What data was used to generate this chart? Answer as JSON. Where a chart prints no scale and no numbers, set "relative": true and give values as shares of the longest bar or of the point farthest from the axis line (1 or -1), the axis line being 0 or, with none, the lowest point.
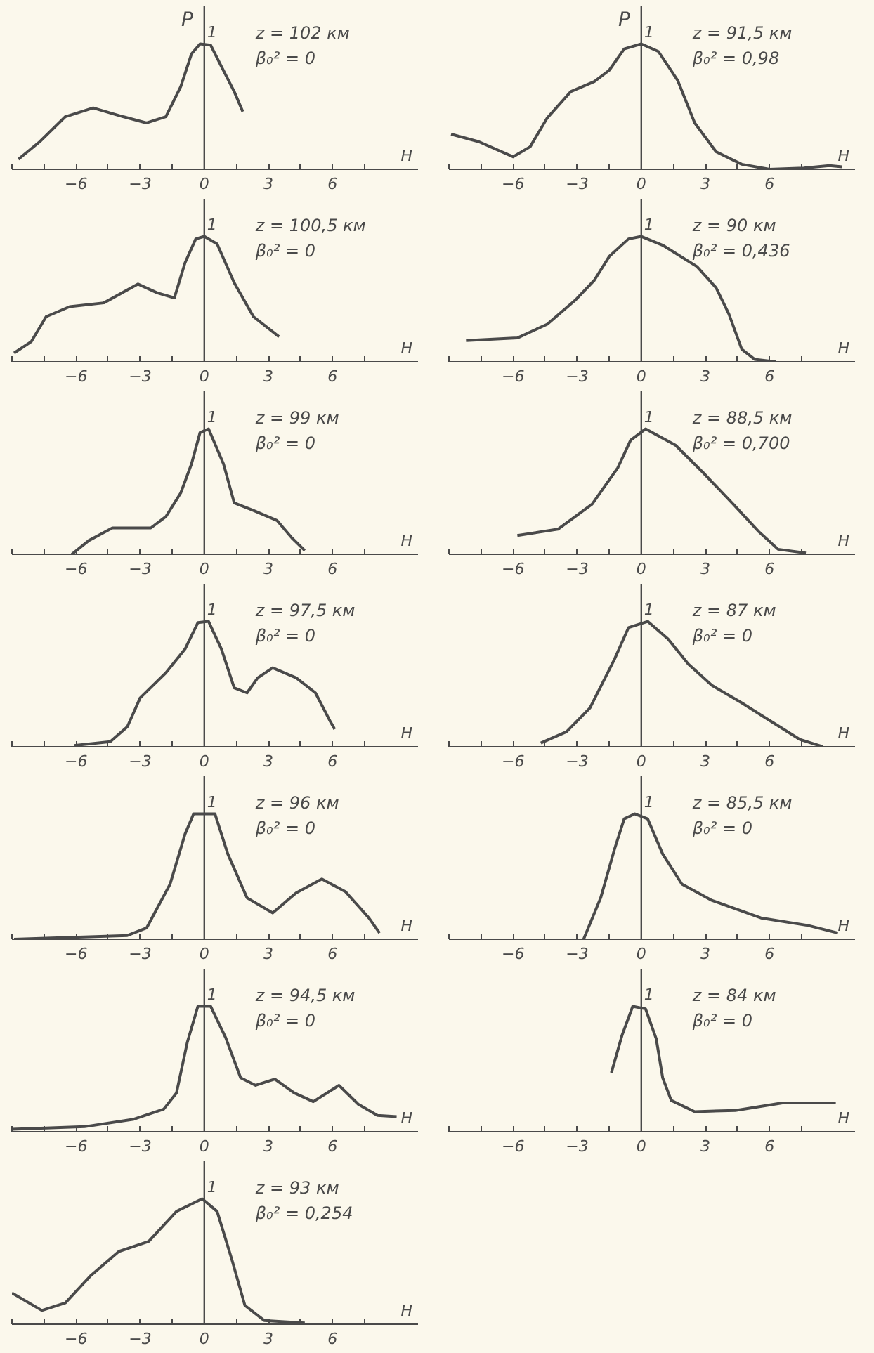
{
  "chart_data": [
    {
      "type": "line",
      "relative": true,
      "title": "z = 102 км",
      "subtitle": "β₀² = 0",
      "ylabel": "P",
      "xlabel": "H",
      "annotations": [
        "1"
      ],
      "ref_lines": [
        {
          "axis": "x",
          "value": 0
        }
      ],
      "xlim": [
        -9,
        10
      ],
      "xticks": [
        {
          "value": -9,
          "label": null
        },
        {
          "value": -7.5,
          "label": null
        },
        {
          "value": -6,
          "label": "−6"
        },
        {
          "value": -4.5,
          "label": null
        },
        {
          "value": -3,
          "label": "−3"
        },
        {
          "value": -1.5,
          "label": null
        },
        0,
        {
          "value": 1.5,
          "label": null
        },
        3,
        {
          "value": 4.5,
          "label": null
        },
        6,
        {
          "value": 7.5,
          "label": null
        }
      ],
      "grid": false,
      "series": [
        {
          "color": "#4a4a4a",
          "x": [
            -8.7,
            -7.7,
            -6.5,
            -5.2,
            -3.8,
            -2.7,
            -1.8,
            -1.1,
            -0.6,
            -0.2,
            0.3,
            0.8,
            1.4,
            1.8
          ],
          "values": [
            0.08,
            0.22,
            0.42,
            0.49,
            0.42,
            0.37,
            0.42,
            0.66,
            0.92,
            1.0,
            0.99,
            0.82,
            0.62,
            0.46
          ]
        }
      ]
    },
    {
      "type": "line",
      "relative": true,
      "title": "z = 100,5 км",
      "subtitle": "β₀² = 0",
      "xlabel": "H",
      "annotations": [
        "1"
      ],
      "ref_lines": [
        {
          "axis": "x",
          "value": 0
        }
      ],
      "xlim": [
        -9,
        10
      ],
      "xticks": [
        {
          "value": -9,
          "label": null
        },
        {
          "value": -7.5,
          "label": null
        },
        {
          "value": -6,
          "label": "−6"
        },
        {
          "value": -4.5,
          "label": null
        },
        {
          "value": -3,
          "label": "−3"
        },
        {
          "value": -1.5,
          "label": null
        },
        0,
        {
          "value": 1.5,
          "label": null
        },
        3,
        {
          "value": 4.5,
          "label": null
        },
        6,
        {
          "value": 7.5,
          "label": null
        }
      ],
      "grid": false,
      "series": [
        {
          "color": "#4a4a4a",
          "x": [
            -8.9,
            -8.1,
            -7.4,
            -6.3,
            -4.7,
            -3.1,
            -2.2,
            -1.4,
            -0.9,
            -0.4,
            0,
            0.6,
            1.4,
            2.3,
            3.5
          ],
          "values": [
            0.07,
            0.16,
            0.36,
            0.44,
            0.47,
            0.62,
            0.55,
            0.51,
            0.79,
            0.98,
            1.0,
            0.94,
            0.63,
            0.36,
            0.2
          ]
        }
      ]
    },
    {
      "type": "line",
      "relative": true,
      "title": "z = 99 км",
      "subtitle": "β₀² = 0",
      "xlabel": "H",
      "annotations": [
        "1"
      ],
      "ref_lines": [
        {
          "axis": "x",
          "value": 0
        }
      ],
      "xlim": [
        -9,
        10
      ],
      "xticks": [
        {
          "value": -9,
          "label": null
        },
        {
          "value": -7.5,
          "label": null
        },
        {
          "value": -6,
          "label": "−6"
        },
        {
          "value": -4.5,
          "label": null
        },
        {
          "value": -3,
          "label": "−3"
        },
        {
          "value": -1.5,
          "label": null
        },
        0,
        {
          "value": 1.5,
          "label": null
        },
        3,
        {
          "value": 4.5,
          "label": null
        },
        6,
        {
          "value": 7.5,
          "label": null
        }
      ],
      "grid": false,
      "series": [
        {
          "color": "#4a4a4a",
          "x": [
            -6.2,
            -5.4,
            -4.3,
            -2.5,
            -1.8,
            -1.1,
            -0.6,
            -0.2,
            0.2,
            0.9,
            1.4,
            2.3,
            3.4,
            4.1,
            4.7
          ],
          "values": [
            0,
            0.11,
            0.21,
            0.21,
            0.3,
            0.49,
            0.72,
            0.97,
            1.0,
            0.72,
            0.41,
            0.35,
            0.27,
            0.13,
            0.03
          ]
        }
      ]
    },
    {
      "type": "line",
      "relative": true,
      "title": "z = 97,5 км",
      "subtitle": "β₀² = 0",
      "xlabel": "H",
      "annotations": [
        "1"
      ],
      "ref_lines": [
        {
          "axis": "x",
          "value": 0
        }
      ],
      "xlim": [
        -9,
        10
      ],
      "xticks": [
        {
          "value": -9,
          "label": null
        },
        {
          "value": -7.5,
          "label": null
        },
        {
          "value": -6,
          "label": "−6"
        },
        {
          "value": -4.5,
          "label": null
        },
        {
          "value": -3,
          "label": "−3"
        },
        {
          "value": -1.5,
          "label": null
        },
        0,
        {
          "value": 1.5,
          "label": null
        },
        3,
        {
          "value": 4.5,
          "label": null
        },
        6,
        {
          "value": 7.5,
          "label": null
        }
      ],
      "grid": false,
      "series": [
        {
          "color": "#4a4a4a",
          "x": [
            -6.1,
            -4.4,
            -3.6,
            -3.0,
            -1.8,
            -0.9,
            -0.3,
            0.2,
            0.8,
            1.4,
            2.0,
            2.5,
            3.2,
            4.3,
            5.2,
            5.9,
            6.1
          ],
          "values": [
            0.01,
            0.04,
            0.16,
            0.39,
            0.59,
            0.78,
            0.99,
            1.0,
            0.78,
            0.47,
            0.43,
            0.55,
            0.63,
            0.55,
            0.43,
            0.2,
            0.14
          ]
        }
      ]
    },
    {
      "type": "line",
      "relative": true,
      "title": "z = 96 км",
      "subtitle": "β₀² = 0",
      "xlabel": "H",
      "annotations": [
        "1"
      ],
      "ref_lines": [
        {
          "axis": "x",
          "value": 0
        }
      ],
      "xlim": [
        -9,
        10
      ],
      "xticks": [
        {
          "value": -9,
          "label": null
        },
        {
          "value": -7.5,
          "label": null
        },
        {
          "value": -6,
          "label": "−6"
        },
        {
          "value": -4.5,
          "label": null
        },
        {
          "value": -3,
          "label": "−3"
        },
        {
          "value": -1.5,
          "label": null
        },
        0,
        {
          "value": 1.5,
          "label": null
        },
        3,
        {
          "value": 4.5,
          "label": null
        },
        6,
        {
          "value": 7.5,
          "label": null
        }
      ],
      "grid": false,
      "series": [
        {
          "color": "#4a4a4a",
          "x": [
            -8.9,
            -3.6,
            -2.7,
            -1.6,
            -0.9,
            -0.5,
            0.5,
            1.1,
            2.0,
            3.2,
            4.3,
            5.5,
            6.6,
            7.7,
            8.2
          ],
          "values": [
            0,
            0.03,
            0.09,
            0.44,
            0.84,
            1.0,
            1.0,
            0.68,
            0.33,
            0.21,
            0.37,
            0.48,
            0.38,
            0.17,
            0.05
          ]
        }
      ]
    },
    {
      "type": "line",
      "relative": true,
      "title": "z = 94,5 км",
      "subtitle": "β₀² = 0",
      "xlabel": "H",
      "annotations": [
        "1"
      ],
      "ref_lines": [
        {
          "axis": "x",
          "value": 0
        }
      ],
      "xlim": [
        -9,
        10
      ],
      "xticks": [
        {
          "value": -9,
          "label": null
        },
        {
          "value": -7.5,
          "label": null
        },
        {
          "value": -6,
          "label": "−6"
        },
        {
          "value": -4.5,
          "label": null
        },
        {
          "value": -3,
          "label": "−3"
        },
        {
          "value": -1.5,
          "label": null
        },
        0,
        {
          "value": 1.5,
          "label": null
        },
        3,
        {
          "value": 4.5,
          "label": null
        },
        6,
        {
          "value": 7.5,
          "label": null
        }
      ],
      "grid": false,
      "series": [
        {
          "color": "#4a4a4a",
          "x": [
            -9.0,
            -5.6,
            -3.3,
            -1.9,
            -1.3,
            -0.8,
            -0.3,
            0.3,
            1.0,
            1.7,
            2.4,
            3.3,
            4.2,
            5.1,
            6.3,
            7.2,
            8.1,
            9.0
          ],
          "values": [
            0.02,
            0.04,
            0.1,
            0.18,
            0.31,
            0.71,
            1.0,
            1.0,
            0.75,
            0.43,
            0.37,
            0.42,
            0.31,
            0.24,
            0.37,
            0.22,
            0.13,
            0.12
          ]
        }
      ]
    },
    {
      "type": "line",
      "relative": true,
      "title": "z = 93 км",
      "subtitle": "β₀² = 0,254",
      "xlabel": "H",
      "annotations": [
        "1"
      ],
      "ref_lines": [
        {
          "axis": "x",
          "value": 0
        }
      ],
      "xlim": [
        -9,
        10
      ],
      "xticks": [
        {
          "value": -9,
          "label": null
        },
        {
          "value": -7.5,
          "label": null
        },
        {
          "value": -6,
          "label": "−6"
        },
        {
          "value": -4.5,
          "label": null
        },
        {
          "value": -3,
          "label": "−3"
        },
        {
          "value": -1.5,
          "label": null
        },
        0,
        {
          "value": 1.5,
          "label": null
        },
        3,
        {
          "value": 4.5,
          "label": null
        },
        6,
        {
          "value": 7.5,
          "label": null
        }
      ],
      "grid": false,
      "series": [
        {
          "color": "#4a4a4a",
          "x": [
            -9.0,
            -7.6,
            -6.5,
            -5.3,
            -4.0,
            -2.6,
            -1.3,
            -0.1,
            0.6,
            1.3,
            1.9,
            2.8,
            4.7
          ],
          "values": [
            0.25,
            0.11,
            0.17,
            0.39,
            0.58,
            0.66,
            0.9,
            1.0,
            0.9,
            0.51,
            0.15,
            0.03,
            0.01
          ]
        }
      ]
    },
    {
      "type": "line",
      "relative": true,
      "title": "z = 91,5 км",
      "subtitle": "β₀² = 0,98",
      "ylabel": "P",
      "xlabel": "H",
      "annotations": [
        "1"
      ],
      "ref_lines": [
        {
          "axis": "x",
          "value": 0
        }
      ],
      "xlim": [
        -9,
        10
      ],
      "xticks": [
        {
          "value": -9,
          "label": null
        },
        {
          "value": -7.5,
          "label": null
        },
        {
          "value": -6,
          "label": "−6"
        },
        {
          "value": -4.5,
          "label": null
        },
        {
          "value": -3,
          "label": "−3"
        },
        {
          "value": -1.5,
          "label": null
        },
        0,
        {
          "value": 1.5,
          "label": null
        },
        3,
        {
          "value": 4.5,
          "label": null
        },
        6,
        {
          "value": 7.5,
          "label": null
        }
      ],
      "grid": false,
      "series": [
        {
          "color": "#4a4a4a",
          "x": [
            -8.9,
            -7.6,
            -6.0,
            -5.2,
            -4.4,
            -3.3,
            -2.2,
            -1.5,
            -0.8,
            0,
            0.8,
            1.7,
            2.5,
            3.5,
            4.7,
            6.0,
            7.6,
            8.8,
            9.4
          ],
          "values": [
            0.28,
            0.22,
            0.1,
            0.18,
            0.41,
            0.62,
            0.7,
            0.79,
            0.96,
            1.0,
            0.94,
            0.71,
            0.37,
            0.14,
            0.04,
            0,
            0.01,
            0.03,
            0.02
          ]
        }
      ]
    },
    {
      "type": "line",
      "relative": true,
      "title": "z = 90 км",
      "subtitle": "β₀² = 0,436",
      "xlabel": "H",
      "annotations": [
        "1"
      ],
      "ref_lines": [
        {
          "axis": "x",
          "value": 0
        }
      ],
      "xlim": [
        -9,
        10
      ],
      "xticks": [
        {
          "value": -9,
          "label": null
        },
        {
          "value": -7.5,
          "label": null
        },
        {
          "value": -6,
          "label": "−6"
        },
        {
          "value": -4.5,
          "label": null
        },
        {
          "value": -3,
          "label": "−3"
        },
        {
          "value": -1.5,
          "label": null
        },
        0,
        {
          "value": 1.5,
          "label": null
        },
        3,
        {
          "value": 4.5,
          "label": null
        },
        6,
        {
          "value": 7.5,
          "label": null
        }
      ],
      "grid": false,
      "series": [
        {
          "color": "#4a4a4a",
          "x": [
            -8.2,
            -5.8,
            -4.4,
            -3.1,
            -2.2,
            -1.5,
            -0.6,
            0,
            1.0,
            2.6,
            3.5,
            4.1,
            4.7,
            5.3,
            6.3
          ],
          "values": [
            0.17,
            0.19,
            0.3,
            0.49,
            0.65,
            0.84,
            0.98,
            1.0,
            0.93,
            0.76,
            0.59,
            0.38,
            0.1,
            0.02,
            0
          ]
        }
      ]
    },
    {
      "type": "line",
      "relative": true,
      "title": "z = 88,5 км",
      "subtitle": "β₀² = 0,700",
      "xlabel": "H",
      "annotations": [
        "1"
      ],
      "ref_lines": [
        {
          "axis": "x",
          "value": 0
        }
      ],
      "xlim": [
        -9,
        10
      ],
      "xticks": [
        {
          "value": -9,
          "label": null
        },
        {
          "value": -7.5,
          "label": null
        },
        {
          "value": -6,
          "label": "−6"
        },
        {
          "value": -4.5,
          "label": null
        },
        {
          "value": -3,
          "label": "−3"
        },
        {
          "value": -1.5,
          "label": null
        },
        0,
        {
          "value": 1.5,
          "label": null
        },
        3,
        {
          "value": 4.5,
          "label": null
        },
        6,
        {
          "value": 7.5,
          "label": null
        }
      ],
      "grid": false,
      "series": [
        {
          "color": "#4a4a4a",
          "x": [
            -5.8,
            -3.9,
            -2.3,
            -1.1,
            -0.5,
            0.2,
            1.6,
            2.9,
            4.3,
            5.5,
            6.4,
            7.7
          ],
          "values": [
            0.15,
            0.2,
            0.4,
            0.69,
            0.91,
            1.0,
            0.87,
            0.65,
            0.4,
            0.18,
            0.04,
            0.01
          ]
        }
      ]
    },
    {
      "type": "line",
      "relative": true,
      "title": "z = 87 км",
      "subtitle": "β₀² = 0",
      "xlabel": "H",
      "annotations": [
        "1"
      ],
      "ref_lines": [
        {
          "axis": "x",
          "value": 0
        }
      ],
      "xlim": [
        -9,
        10
      ],
      "xticks": [
        {
          "value": -9,
          "label": null
        },
        {
          "value": -7.5,
          "label": null
        },
        {
          "value": -6,
          "label": "−6"
        },
        {
          "value": -4.5,
          "label": null
        },
        {
          "value": -3,
          "label": "−3"
        },
        {
          "value": -1.5,
          "label": null
        },
        0,
        {
          "value": 1.5,
          "label": null
        },
        3,
        {
          "value": 4.5,
          "label": null
        },
        6,
        {
          "value": 7.5,
          "label": null
        }
      ],
      "grid": false,
      "series": [
        {
          "color": "#4a4a4a",
          "x": [
            -4.7,
            -3.5,
            -2.4,
            -1.25,
            -0.6,
            0.3,
            1.25,
            2.2,
            3.3,
            4.7,
            6.0,
            7.4,
            8.5
          ],
          "values": [
            0.03,
            0.12,
            0.31,
            0.7,
            0.95,
            1.0,
            0.86,
            0.66,
            0.49,
            0.35,
            0.21,
            0.06,
            0
          ]
        }
      ]
    },
    {
      "type": "line",
      "relative": true,
      "title": "z = 85,5 км",
      "subtitle": "β₀² = 0",
      "xlabel": "H",
      "annotations": [
        "1"
      ],
      "ref_lines": [
        {
          "axis": "x",
          "value": 0
        }
      ],
      "xlim": [
        -9,
        10
      ],
      "xticks": [
        {
          "value": -9,
          "label": null
        },
        {
          "value": -7.5,
          "label": null
        },
        {
          "value": -6,
          "label": "−6"
        },
        {
          "value": -4.5,
          "label": null
        },
        {
          "value": -3,
          "label": "−3"
        },
        {
          "value": -1.5,
          "label": null
        },
        0,
        {
          "value": 1.5,
          "label": null
        },
        3,
        {
          "value": 4.5,
          "label": null
        },
        6,
        {
          "value": 7.5,
          "label": null
        }
      ],
      "grid": false,
      "series": [
        {
          "color": "#4a4a4a",
          "x": [
            -2.7,
            -1.9,
            -1.25,
            -0.8,
            -0.3,
            0.3,
            1.0,
            1.9,
            3.3,
            5.6,
            7.8,
            9.2
          ],
          "values": [
            0,
            0.33,
            0.72,
            0.96,
            1.0,
            0.96,
            0.68,
            0.44,
            0.31,
            0.17,
            0.11,
            0.05
          ]
        }
      ]
    },
    {
      "type": "line",
      "relative": true,
      "title": "z = 84 км",
      "subtitle": "β₀² = 0",
      "xlabel": "H",
      "annotations": [
        "1"
      ],
      "ref_lines": [
        {
          "axis": "x",
          "value": 0
        }
      ],
      "xlim": [
        -9,
        10
      ],
      "xticks": [
        {
          "value": -9,
          "label": null
        },
        {
          "value": -7.5,
          "label": null
        },
        {
          "value": -6,
          "label": "−6"
        },
        {
          "value": -4.5,
          "label": null
        },
        {
          "value": -3,
          "label": "−3"
        },
        {
          "value": -1.5,
          "label": null
        },
        0,
        {
          "value": 1.5,
          "label": null
        },
        3,
        {
          "value": 4.5,
          "label": null
        },
        6,
        {
          "value": 7.5,
          "label": null
        }
      ],
      "grid": false,
      "series": [
        {
          "color": "#4a4a4a",
          "x": [
            -1.4,
            -0.9,
            -0.4,
            0.2,
            0.7,
            1.0,
            1.4,
            2.5,
            4.4,
            6.6,
            9.1
          ],
          "values": [
            0.47,
            0.77,
            1.0,
            0.98,
            0.74,
            0.43,
            0.25,
            0.16,
            0.17,
            0.23,
            0.23
          ]
        }
      ]
    }
  ]
}
